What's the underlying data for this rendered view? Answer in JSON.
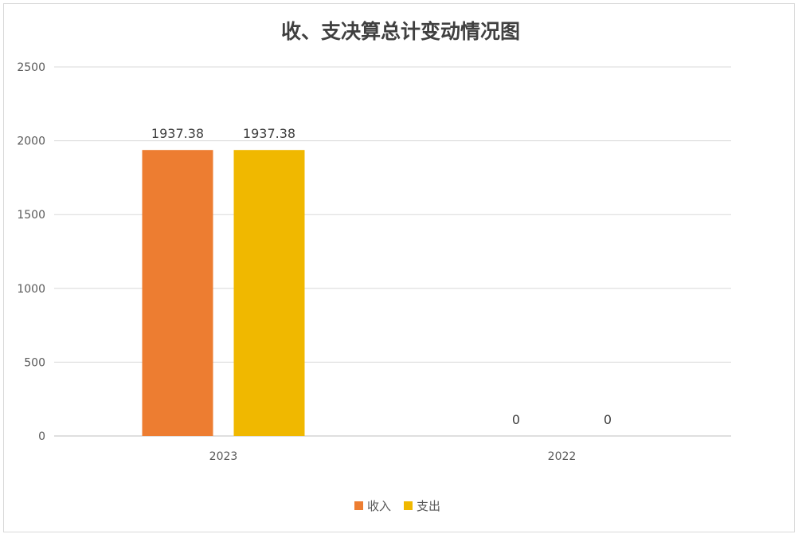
{
  "chart_data": {
    "type": "bar",
    "title": "收、支决算总计变动情况图",
    "categories": [
      "2023",
      "2022"
    ],
    "series": [
      {
        "name": "收入",
        "values": [
          1937.38,
          0
        ],
        "color": "#ED7D31"
      },
      {
        "name": "支出",
        "values": [
          1937.38,
          0
        ],
        "color": "#F0B800"
      }
    ],
    "data_labels": [
      [
        "1937.38",
        "0"
      ],
      [
        "1937.38",
        "0"
      ]
    ],
    "ylim": [
      0,
      2500
    ],
    "yticks": [
      0,
      500,
      1000,
      1500,
      2000,
      2500
    ],
    "grid": true,
    "legend_position": "bottom"
  }
}
